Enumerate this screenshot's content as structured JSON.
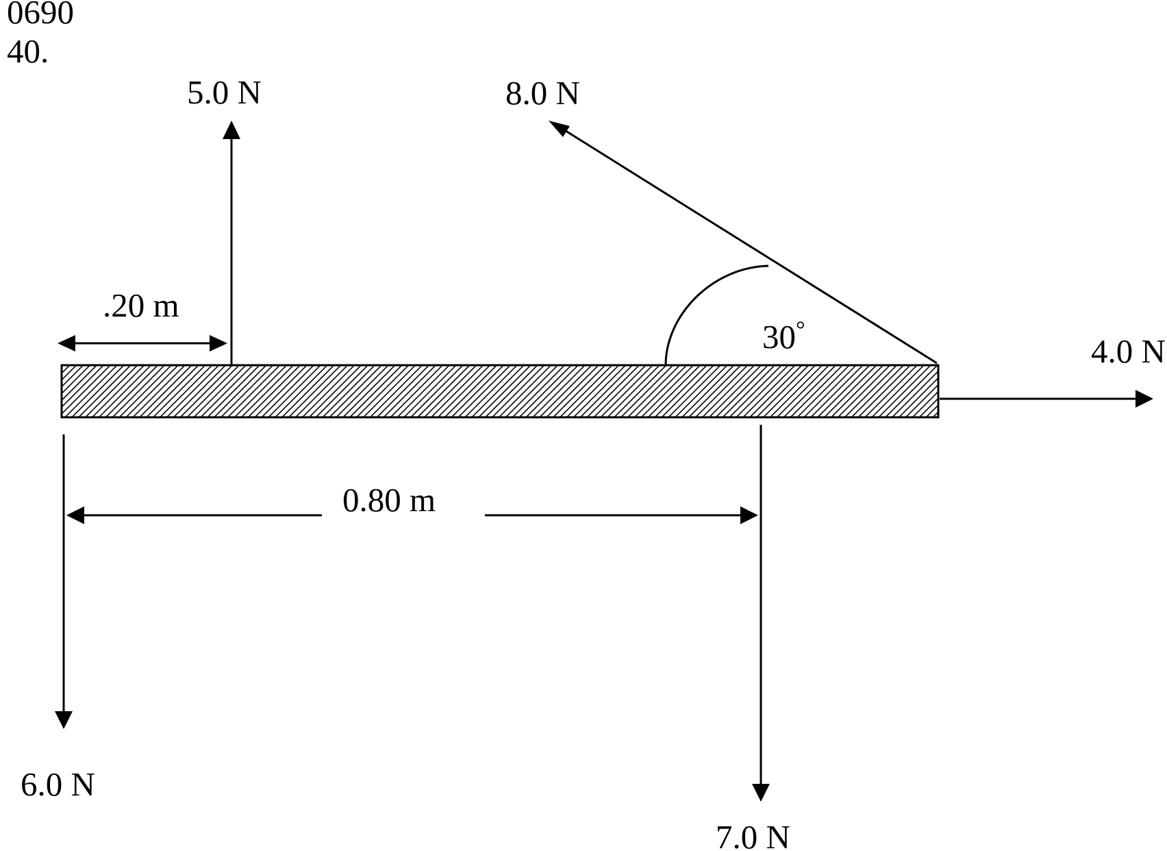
{
  "header": {
    "code": "0690",
    "number": "40."
  },
  "forces": {
    "up_left": "5.0 N",
    "angled": "8.0 N",
    "right": "4.0 N",
    "down_left": "6.0 N",
    "down_right": "7.0 N"
  },
  "dimensions": {
    "short": ".20 m",
    "long": "0.80 m"
  },
  "angle": {
    "label": "30",
    "unit": "°"
  },
  "colors": {
    "ink": "#000000",
    "background": "#ffffff"
  }
}
